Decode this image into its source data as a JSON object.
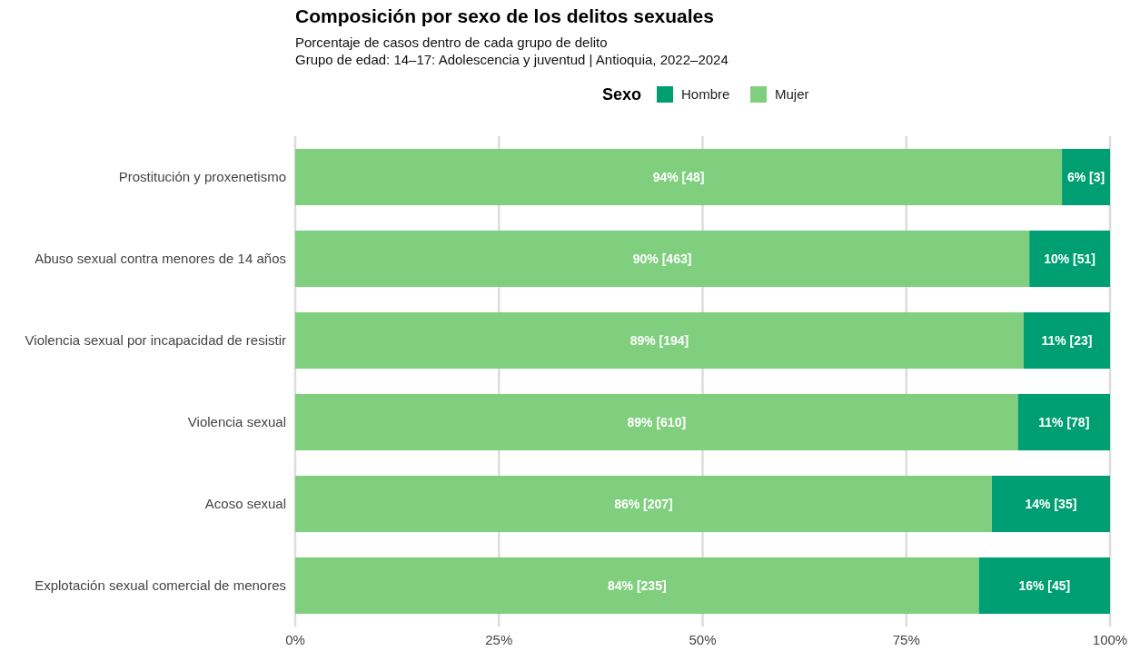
{
  "chart_data": {
    "type": "bar",
    "title": "Composición por sexo de los delitos sexuales",
    "subtitle": "Porcentaje de casos dentro de cada grupo de delito\nGrupo de edad: 14–17: Adolescencia y juventud | Antioquia, 2022–2024",
    "legend_title": "Sexo",
    "orientation": "horizontal",
    "stacked": true,
    "categories": [
      "Prostitución y proxenetismo",
      "Abuso sexual contra menores de 14 años",
      "Violencia sexual por incapacidad de resistir",
      "Violencia sexual",
      "Acoso sexual",
      "Explotación sexual comercial de menores"
    ],
    "series": [
      {
        "name": "Mujer",
        "color": "#80cf7f",
        "values": [
          94.1,
          90.1,
          89.4,
          88.7,
          85.5,
          83.9
        ],
        "value_labels": [
          "94% [48]",
          "90% [463]",
          "89% [194]",
          "89% [610]",
          "86% [207]",
          "84% [235]"
        ]
      },
      {
        "name": "Hombre",
        "color": "#009e73",
        "values": [
          5.9,
          9.9,
          10.6,
          11.3,
          14.5,
          16.1
        ],
        "value_labels": [
          "6% [3]",
          "10% [51]",
          "11% [23]",
          "11% [78]",
          "14% [35]",
          "16% [45]"
        ]
      }
    ],
    "xlim": [
      0,
      100
    ],
    "xticks": [
      {
        "value": 0,
        "label": "0%"
      },
      {
        "value": 25,
        "label": "25%"
      },
      {
        "value": 50,
        "label": "50%"
      },
      {
        "value": 75,
        "label": "75%"
      },
      {
        "value": 100,
        "label": "100%"
      }
    ],
    "grid": "x",
    "legend": "top"
  }
}
